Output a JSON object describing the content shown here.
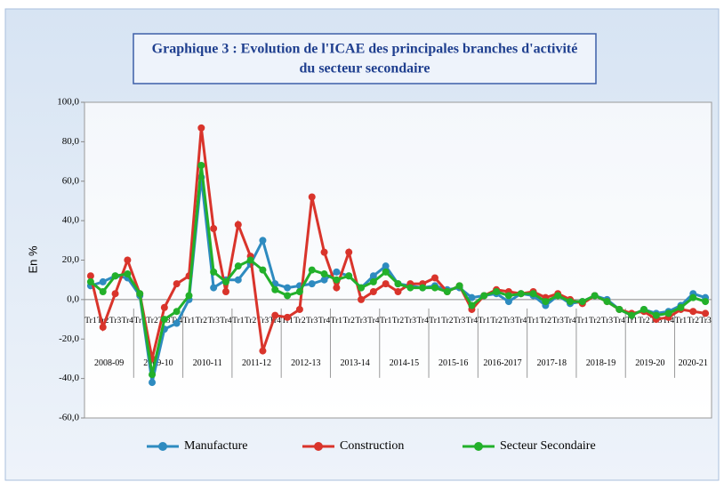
{
  "chart_data": {
    "type": "line",
    "title_lines": [
      "Graphique 3 : Evolution de l'ICAE des principales branches d'activité",
      "du secteur secondaire"
    ],
    "y_label": "En %",
    "categories": [
      "Tr1",
      "Tr2",
      "Tr3",
      "Tr4",
      "Tr1",
      "Tr2",
      "Tr3",
      "Tr4",
      "Tr1",
      "Tr2",
      "Tr3",
      "Tr4",
      "Tr1",
      "Tr2",
      "Tr3",
      "Tr4",
      "Tr1",
      "Tr2",
      "Tr3",
      "Tr4",
      "Tr1",
      "Tr2",
      "Tr3",
      "Tr4",
      "Tr1",
      "Tr2",
      "Tr3",
      "Tr4",
      "Tr1",
      "Tr2",
      "Tr3",
      "Tr4",
      "Tr1",
      "Tr2",
      "Tr3",
      "Tr4",
      "Tr1",
      "Tr2",
      "Tr3",
      "Tr4",
      "Tr1",
      "Tr2",
      "Tr3",
      "Tr4",
      "Tr1",
      "Tr2",
      "Tr3",
      "Tr4",
      "Tr1",
      "Tr2",
      "Tr3"
    ],
    "year_groups": [
      "2008-09",
      "2009-10",
      "2010-11",
      "2011-12",
      "2012-13",
      "2013-14",
      "2014-15",
      "2015-16",
      "2016-2017",
      "2017-18",
      "2018-19",
      "2019-20",
      "2020-21"
    ],
    "series": [
      {
        "name": "Manufacture",
        "color": "#2e8bc0",
        "values": [
          7,
          9,
          12,
          11,
          2,
          -42,
          -15,
          -12,
          0,
          62,
          6,
          10,
          10,
          18,
          30,
          8,
          6,
          7,
          8,
          10,
          14,
          12,
          6,
          12,
          17,
          8,
          7,
          6,
          7,
          5,
          6,
          1,
          2,
          3,
          -1,
          3,
          2,
          -3,
          2,
          -2,
          -1,
          2,
          0,
          -5,
          -8,
          -5,
          -7,
          -6,
          -3,
          3,
          1
        ]
      },
      {
        "name": "Construction",
        "color": "#d9342b",
        "values": [
          12,
          -14,
          3,
          20,
          3,
          -30,
          -4,
          8,
          12,
          87,
          36,
          4,
          38,
          22,
          -26,
          -8,
          -9,
          -5,
          52,
          24,
          6,
          24,
          0,
          4,
          8,
          4,
          8,
          8,
          11,
          4,
          7,
          -5,
          2,
          5,
          4,
          3,
          4,
          1,
          3,
          0,
          -2,
          2,
          -1,
          -5,
          -7,
          -6,
          -10,
          -9,
          -5,
          -6,
          -7
        ]
      },
      {
        "name": "Secteur Secondaire",
        "color": "#22b02a",
        "values": [
          9,
          4,
          12,
          13,
          3,
          -38,
          -10,
          -6,
          2,
          68,
          14,
          9,
          17,
          20,
          15,
          5,
          2,
          4,
          15,
          13,
          10,
          12,
          6,
          9,
          14,
          8,
          6,
          6,
          6,
          4,
          7,
          -3,
          2,
          4,
          2,
          3,
          3,
          -1,
          2,
          -1,
          -1,
          2,
          -1,
          -5,
          -8,
          -5,
          -8,
          -7,
          -4,
          1,
          -1
        ]
      }
    ],
    "ylim": [
      -60,
      100
    ],
    "yticks": [
      {
        "value": -60,
        "label": "-60,0"
      },
      {
        "value": -40,
        "label": "-40,0"
      },
      {
        "value": -20,
        "label": "-20,0"
      },
      {
        "value": 0,
        "label": "0,0"
      },
      {
        "value": 20,
        "label": "20,0"
      },
      {
        "value": 40,
        "label": "40,0"
      },
      {
        "value": 60,
        "label": "60,0"
      },
      {
        "value": 80,
        "label": "80,0"
      },
      {
        "value": 100,
        "label": "100,0"
      }
    ],
    "grid": false
  }
}
